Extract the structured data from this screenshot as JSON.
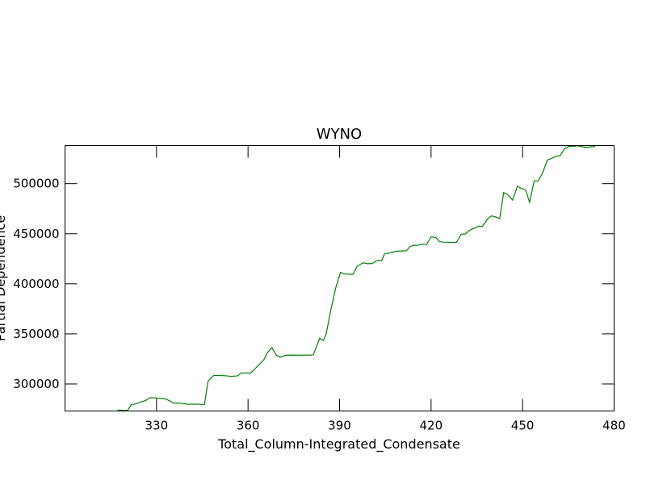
{
  "chart_data": {
    "type": "line",
    "title": "WYNO",
    "xlabel": "Total_Column-Integrated_Condensate",
    "ylabel": "Partial Dependence",
    "xlim": [
      300,
      480
    ],
    "ylim": [
      273000,
      538000
    ],
    "xticks": [
      330,
      360,
      390,
      420,
      450,
      480
    ],
    "yticks": [
      300000,
      350000,
      400000,
      450000,
      500000
    ],
    "grid": false,
    "line_color": "#008000",
    "series": [
      {
        "x": [
          317.2,
          318.5,
          320.5,
          321.8,
          323.0,
          324.5,
          326.4,
          327.8,
          329.6,
          330.9,
          332.6,
          334.3,
          335.6,
          337.6,
          340.3,
          342.6,
          345.7,
          346.9,
          348.7,
          350.7,
          352.5,
          354.4,
          356.6,
          357.8,
          359.6,
          360.8,
          363.4,
          365.2,
          366.4,
          367.8,
          369.3,
          370.6,
          372.2,
          373.9,
          375.3,
          377.2,
          378.8,
          380.2,
          381.4,
          383.5,
          384.7,
          385.6,
          387.1,
          388.8,
          390.3,
          391.5,
          392.9,
          394.4,
          395.8,
          397.7,
          399.0,
          400.7,
          402.3,
          403.8,
          404.8,
          405.9,
          407.5,
          408.8,
          410.4,
          411.9,
          413.2,
          414.4,
          415.5,
          417.2,
          418.5,
          420.0,
          421.5,
          422.8,
          424.1,
          425.5,
          427.0,
          428.3,
          429.9,
          431.2,
          432.8,
          434.1,
          435.6,
          436.8,
          438.4,
          439.7,
          441.0,
          442.5,
          443.8,
          445.2,
          446.7,
          448.3,
          449.5,
          451.0,
          452.3,
          453.8,
          455.1,
          456.6,
          458.1,
          459.4,
          460.9,
          462.3,
          463.7,
          465.1,
          466.8,
          468.1,
          469.4,
          470.8,
          472.0,
          473.8
        ],
        "y": [
          273900,
          273700,
          273500,
          279500,
          279900,
          281700,
          283400,
          286300,
          286100,
          285700,
          285400,
          283200,
          280800,
          280900,
          279700,
          279900,
          279500,
          302800,
          308400,
          308400,
          308200,
          307600,
          308100,
          311000,
          311000,
          310700,
          318600,
          324200,
          331500,
          336200,
          328600,
          326700,
          328600,
          328900,
          328800,
          328800,
          328800,
          328800,
          329000,
          345800,
          343400,
          349700,
          373500,
          396600,
          411400,
          409900,
          409600,
          409400,
          417600,
          421000,
          420100,
          420300,
          423300,
          423100,
          430300,
          430400,
          431800,
          432600,
          432800,
          433000,
          437400,
          438500,
          438400,
          439600,
          439300,
          446900,
          446300,
          442100,
          441600,
          441500,
          441400,
          441400,
          449500,
          449800,
          453800,
          455500,
          457700,
          457100,
          464400,
          467800,
          467000,
          465100,
          491100,
          489000,
          483600,
          497400,
          495400,
          493700,
          481500,
          502700,
          502700,
          510900,
          523500,
          525100,
          527500,
          527900,
          534600,
          537100,
          537300,
          537800,
          536900,
          536300,
          536600,
          537100
        ]
      }
    ]
  }
}
